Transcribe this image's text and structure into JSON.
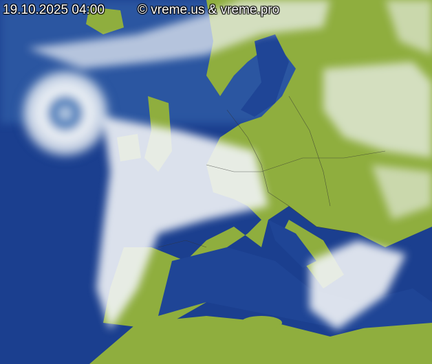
{
  "image": {
    "kind": "infrared satellite composite of Europe",
    "colors": {
      "ocean": "#1b3f8f",
      "ocean_light": "#3f74b8",
      "land": "#8fae3e",
      "land_dark": "#6f9130",
      "cloud": "#f2f4f6",
      "border": "#333333"
    }
  },
  "overlay": {
    "timestamp": "19.10.2025 04:00",
    "copyright": "© vreme.us & vreme.pro"
  }
}
